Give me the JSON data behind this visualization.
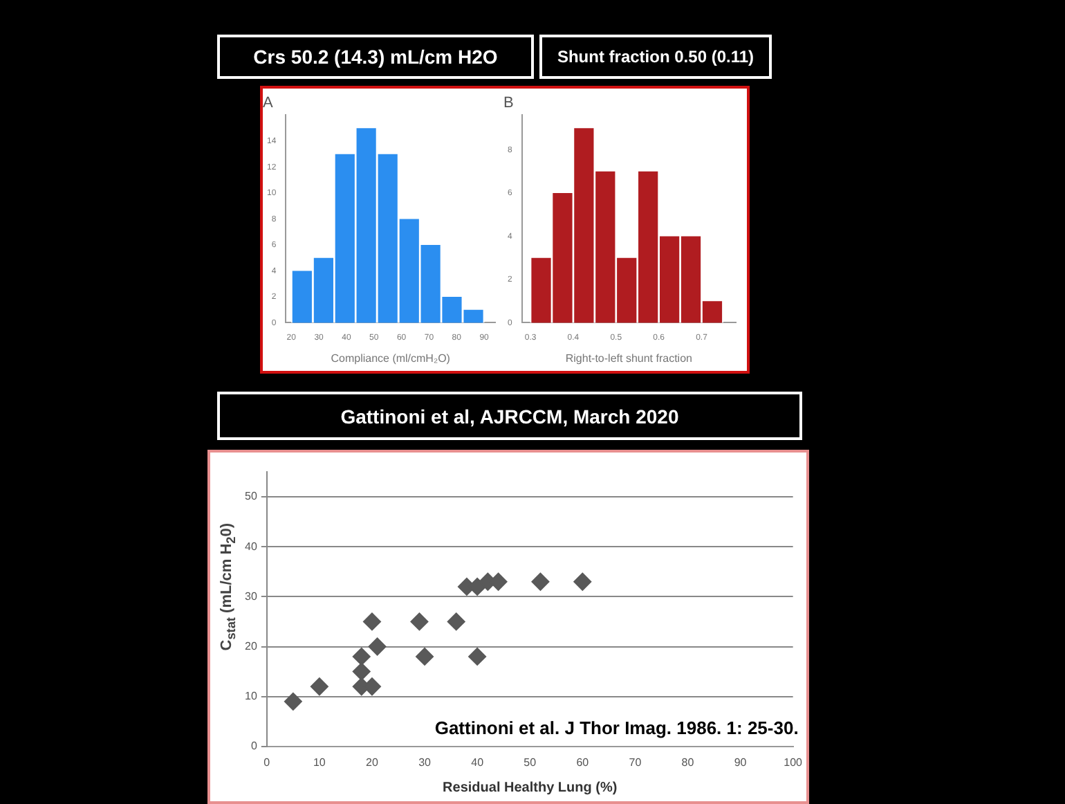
{
  "chart_data": [
    {
      "type": "histogram",
      "title": "A",
      "xlabel": "Compliance (ml/cmH₂O)",
      "annotations": [
        "Crs 50.2 (14.3) mL/cm H2O"
      ],
      "bins": [
        20,
        27.8,
        35.6,
        43.3,
        51.1,
        58.9,
        66.7,
        74.4,
        82.2,
        90
      ],
      "values": [
        4,
        5,
        13,
        15,
        13,
        8,
        6,
        2,
        1
      ],
      "color": "#2b8ef0",
      "xlim": [
        18,
        94
      ],
      "xticks": [
        20,
        30,
        40,
        50,
        60,
        70,
        80,
        90
      ],
      "ylim": [
        0,
        16
      ],
      "yticks": [
        0,
        2,
        4,
        6,
        8,
        10,
        12,
        14
      ]
    },
    {
      "type": "histogram",
      "title": "B",
      "xlabel": "Right-to-left shunt fraction",
      "annotations": [
        "Shunt fraction 0.50 (0.11)",
        "Gattinoni et al, AJRCCM, March 2020"
      ],
      "bins": [
        0.3,
        0.35,
        0.4,
        0.45,
        0.5,
        0.55,
        0.6,
        0.65,
        0.7,
        0.75
      ],
      "values": [
        3,
        6,
        9,
        7,
        3,
        7,
        4,
        4,
        1
      ],
      "color": "#b01c20",
      "xlim": [
        0.28,
        0.78
      ],
      "xticks": [
        0.3,
        0.4,
        0.5,
        0.6,
        0.7
      ],
      "ylim": [
        0,
        9.6
      ],
      "yticks": [
        0,
        2,
        4,
        6,
        8
      ]
    },
    {
      "type": "scatter",
      "xlabel": "Residual Healthy Lung (%)",
      "ylabel": "C$_{stat}$ (mL/cm H$_{2}$0)",
      "annotations": [
        "Gattinoni et al. J Thor Imag. 1986. 1: 25-30."
      ],
      "x": [
        5,
        10,
        18,
        18,
        18,
        20,
        20,
        21,
        29,
        30,
        36,
        38,
        40,
        40,
        42,
        44,
        52,
        60
      ],
      "values": [
        9,
        12,
        18,
        15,
        12,
        12,
        25,
        20,
        25,
        18,
        25,
        32,
        32,
        18,
        33,
        33,
        33,
        33
      ],
      "color": "#595959",
      "marker": "diamond",
      "xlim": [
        0,
        100
      ],
      "xticks": [
        0,
        10,
        20,
        30,
        40,
        50,
        60,
        70,
        80,
        90,
        100
      ],
      "ylim": [
        0,
        55
      ],
      "yticks": [
        0,
        10,
        20,
        30,
        40,
        50
      ],
      "grid": "y"
    }
  ]
}
